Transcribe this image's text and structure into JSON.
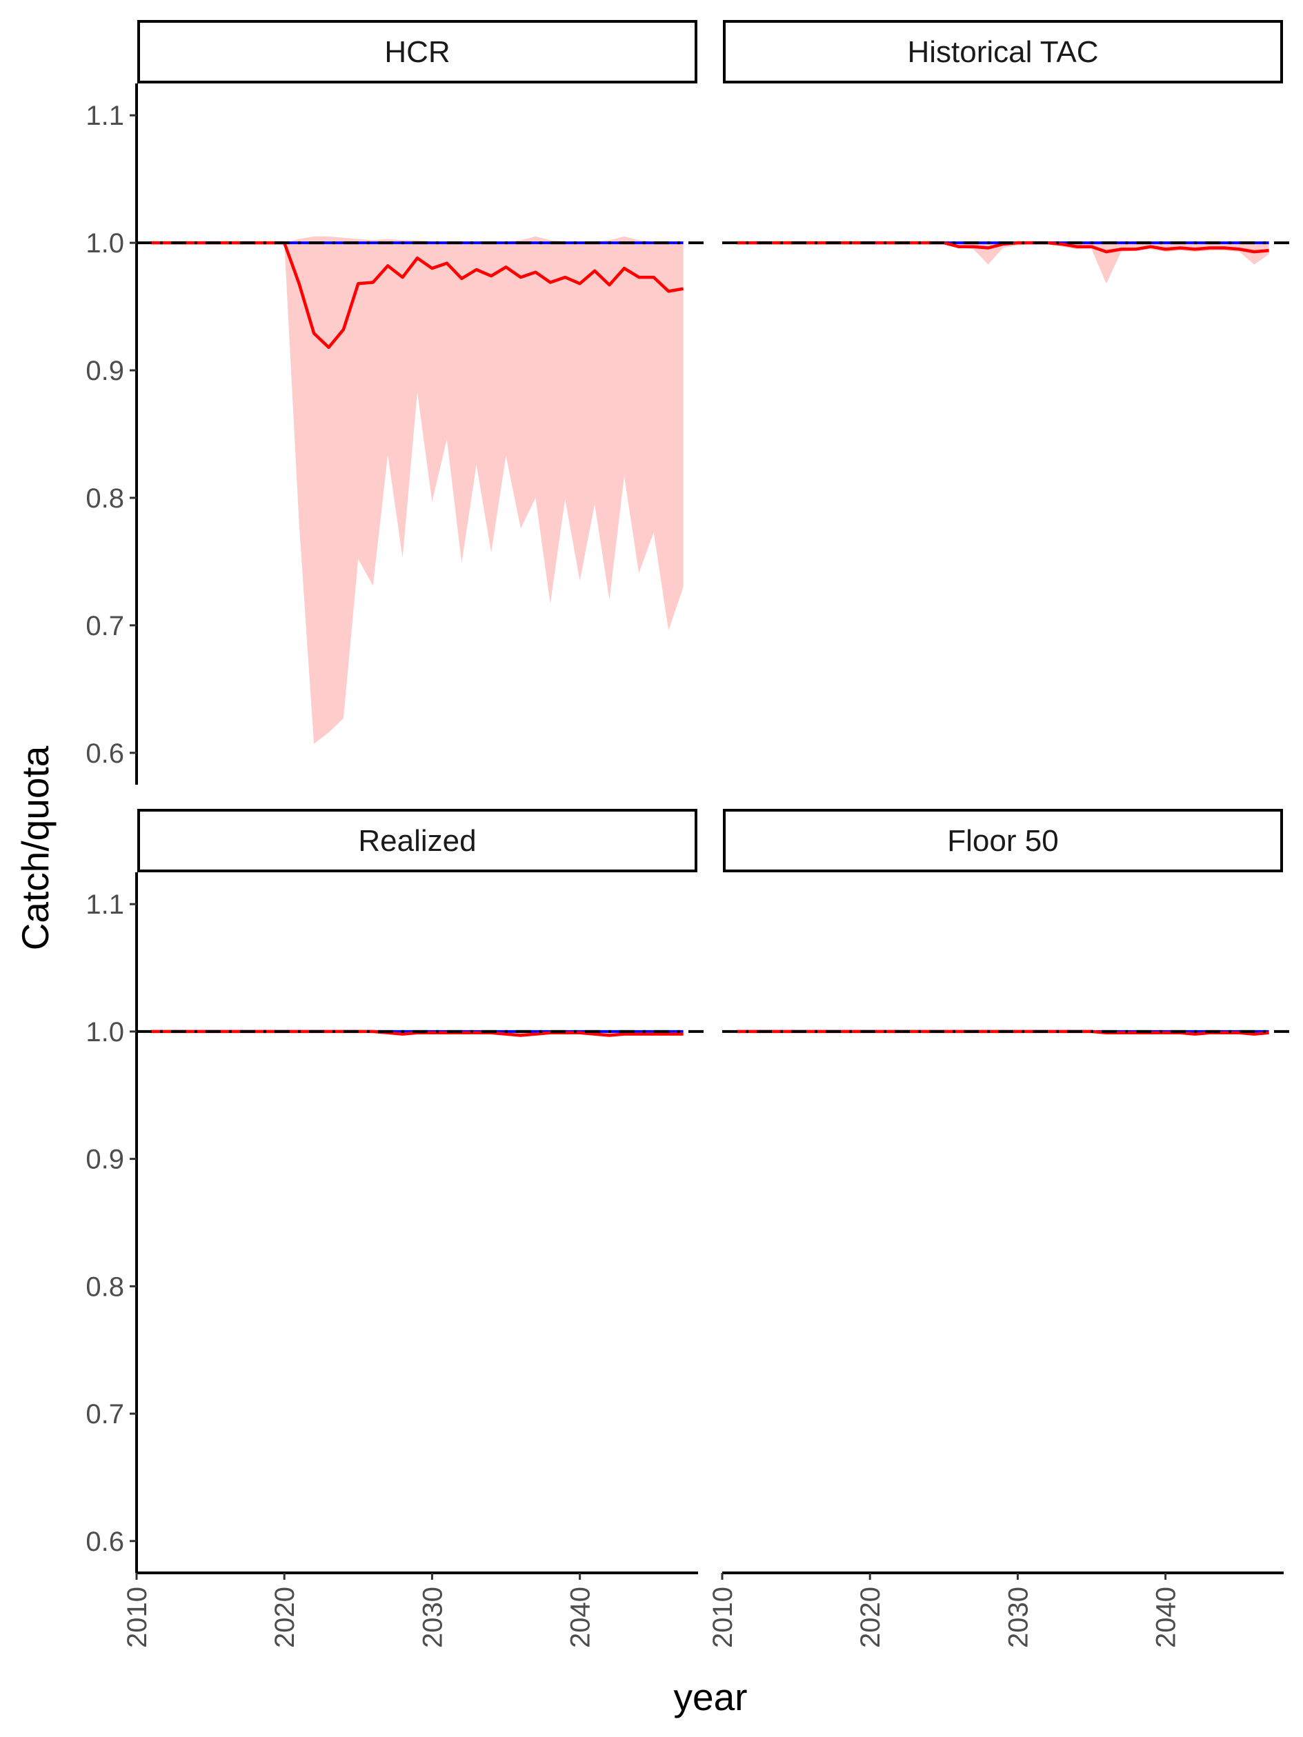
{
  "chart_data": {
    "type": "line",
    "ylabel": "Catch/quota",
    "xlabel": "year",
    "xlim": [
      2010,
      2048
    ],
    "ylim": [
      0.575,
      1.125
    ],
    "x_ticks": [
      2010,
      2020,
      2030,
      2040
    ],
    "y_ticks": [
      0.6,
      0.7,
      0.8,
      0.9,
      1.0,
      1.1
    ],
    "x_tick_labels": [
      "2010",
      "2020",
      "2030",
      "2040"
    ],
    "y_tick_labels": [
      "0.6",
      "0.7",
      "0.8",
      "0.9",
      "1.0",
      "1.1"
    ],
    "reference_line": 1.0,
    "grid": false,
    "colors": {
      "median": "#ff0000",
      "band": "#ffcccc",
      "blue_line": "#0000ff",
      "reference": "#000000"
    },
    "years": [
      2011,
      2012,
      2013,
      2014,
      2015,
      2016,
      2017,
      2018,
      2019,
      2020,
      2021,
      2022,
      2023,
      2024,
      2025,
      2026,
      2027,
      2028,
      2029,
      2030,
      2031,
      2032,
      2033,
      2034,
      2035,
      2036,
      2037,
      2038,
      2039,
      2040,
      2041,
      2042,
      2043,
      2044,
      2045,
      2046,
      2047
    ],
    "panels": [
      {
        "label": "HCR",
        "median": [
          1,
          1,
          1,
          1,
          1,
          1,
          1,
          1,
          1,
          1,
          0.968,
          0.929,
          0.918,
          0.932,
          0.968,
          0.969,
          0.982,
          0.973,
          0.988,
          0.98,
          0.984,
          0.972,
          0.979,
          0.974,
          0.981,
          0.973,
          0.977,
          0.969,
          0.973,
          0.968,
          0.978,
          0.967,
          0.98,
          0.973,
          0.973,
          0.962,
          0.964
        ],
        "lower": [
          1,
          1,
          1,
          1,
          1,
          1,
          1,
          1,
          1,
          1,
          0.78,
          0.607,
          0.616,
          0.627,
          0.752,
          0.731,
          0.834,
          0.753,
          0.883,
          0.797,
          0.846,
          0.749,
          0.826,
          0.757,
          0.833,
          0.776,
          0.8,
          0.717,
          0.799,
          0.735,
          0.795,
          0.72,
          0.817,
          0.741,
          0.773,
          0.696,
          0.73
        ],
        "upper": [
          1,
          1,
          1,
          1,
          1,
          1,
          1,
          1,
          1,
          1,
          1.003,
          1.005,
          1.005,
          1.004,
          1.003,
          1.002,
          1.003,
          1.002,
          1.002,
          1.001,
          1.001,
          1.001,
          1.001,
          1.001,
          1.001,
          1.002,
          1.005,
          1.002,
          1.001,
          1.001,
          1.001,
          1.002,
          1.005,
          1.002,
          1.001,
          1.001,
          1.001
        ],
        "blue": [
          1,
          1,
          1,
          1,
          1,
          1,
          1,
          1,
          1,
          1,
          1,
          1,
          1,
          1,
          1,
          1,
          1,
          1,
          1,
          1,
          1,
          1,
          1,
          1,
          1,
          1,
          1,
          1,
          1,
          1,
          1,
          1,
          1,
          1,
          1,
          1,
          1
        ]
      },
      {
        "label": "Historical TAC",
        "median": [
          1,
          1,
          1,
          1,
          1,
          1,
          1,
          1,
          1,
          1,
          1,
          1,
          1,
          1,
          1,
          0.997,
          0.997,
          0.996,
          0.999,
          1.0,
          1.0,
          1.0,
          0.999,
          0.997,
          0.997,
          0.993,
          0.995,
          0.995,
          0.997,
          0.995,
          0.996,
          0.995,
          0.996,
          0.996,
          0.995,
          0.993,
          0.994
        ],
        "lower": [
          1,
          1,
          1,
          1,
          1,
          1,
          1,
          1,
          1,
          1,
          1,
          1,
          1,
          1,
          1,
          0.996,
          0.995,
          0.983,
          0.996,
          0.998,
          0.999,
          0.999,
          0.997,
          0.995,
          0.995,
          0.968,
          0.993,
          0.994,
          0.995,
          0.993,
          0.994,
          0.993,
          0.994,
          0.994,
          0.993,
          0.983,
          0.991
        ],
        "upper": [
          1,
          1,
          1,
          1,
          1,
          1,
          1,
          1,
          1,
          1,
          1,
          1,
          1,
          1,
          1,
          1,
          1,
          1,
          1,
          1,
          1,
          1,
          1,
          1,
          1,
          1,
          1,
          1,
          1,
          1,
          1,
          1,
          1,
          1,
          1,
          1,
          1
        ],
        "blue": [
          1,
          1,
          1,
          1,
          1,
          1,
          1,
          1,
          1,
          1,
          1,
          1,
          1,
          1,
          1,
          1,
          1,
          1,
          1,
          1,
          1,
          1,
          1,
          1,
          1,
          1,
          1,
          1,
          1,
          1,
          1,
          1,
          1,
          1,
          1,
          1,
          1
        ]
      },
      {
        "label": "Realized",
        "median": [
          1,
          1,
          1,
          1,
          1,
          1,
          1,
          1,
          1,
          1,
          1,
          1,
          1,
          1,
          1,
          1,
          0.999,
          0.998,
          0.999,
          0.999,
          0.999,
          0.999,
          0.999,
          0.999,
          0.998,
          0.997,
          0.998,
          0.999,
          0.999,
          0.999,
          0.998,
          0.997,
          0.998,
          0.998,
          0.998,
          0.998,
          0.998
        ],
        "lower": [
          1,
          1,
          1,
          1,
          1,
          1,
          1,
          1,
          1,
          1,
          1,
          1,
          1,
          1,
          1,
          1,
          0.998,
          0.997,
          0.998,
          0.998,
          0.998,
          0.998,
          0.998,
          0.998,
          0.997,
          0.996,
          0.997,
          0.998,
          0.998,
          0.998,
          0.997,
          0.996,
          0.997,
          0.997,
          0.997,
          0.997,
          0.997
        ],
        "upper": [
          1,
          1,
          1,
          1,
          1,
          1,
          1,
          1,
          1,
          1,
          1,
          1,
          1,
          1,
          1,
          1,
          1,
          1,
          1,
          1,
          1,
          1,
          1,
          1,
          1,
          1,
          1,
          1,
          1,
          1,
          1,
          1,
          1,
          1,
          1,
          1,
          1
        ],
        "blue": [
          1,
          1,
          1,
          1,
          1,
          1,
          1,
          1,
          1,
          1,
          1,
          1,
          1,
          1,
          1,
          1,
          1,
          1,
          1,
          1,
          1,
          1,
          1,
          1,
          1,
          1,
          1,
          1,
          1,
          1,
          1,
          1,
          1,
          1,
          1,
          1,
          1
        ]
      },
      {
        "label": "Floor 50",
        "median": [
          1,
          1,
          1,
          1,
          1,
          1,
          1,
          1,
          1,
          1,
          1,
          1,
          1,
          1,
          1,
          1,
          1,
          1,
          1,
          1,
          1,
          1,
          1,
          1,
          1,
          0.999,
          0.999,
          0.999,
          0.999,
          0.999,
          0.999,
          0.998,
          0.999,
          0.999,
          0.999,
          0.998,
          0.999
        ],
        "lower": [
          1,
          1,
          1,
          1,
          1,
          1,
          1,
          1,
          1,
          1,
          1,
          1,
          1,
          1,
          1,
          1,
          1,
          1,
          1,
          1,
          1,
          1,
          1,
          1,
          1,
          0.998,
          0.998,
          0.998,
          0.998,
          0.998,
          0.998,
          0.997,
          0.998,
          0.998,
          0.998,
          0.997,
          0.998
        ],
        "upper": [
          1,
          1,
          1,
          1,
          1,
          1,
          1,
          1,
          1,
          1,
          1,
          1,
          1,
          1,
          1,
          1,
          1,
          1,
          1,
          1,
          1,
          1,
          1,
          1,
          1,
          1,
          1,
          1,
          1,
          1,
          1,
          1,
          1,
          1,
          1,
          1,
          1
        ],
        "blue": [
          1,
          1,
          1,
          1,
          1,
          1,
          1,
          1,
          1,
          1,
          1,
          1,
          1,
          1,
          1,
          1,
          1,
          1,
          1,
          1,
          1,
          1,
          1,
          1,
          1,
          1,
          1,
          1,
          1,
          1,
          1,
          1,
          1,
          1,
          1,
          1,
          1
        ]
      }
    ]
  }
}
